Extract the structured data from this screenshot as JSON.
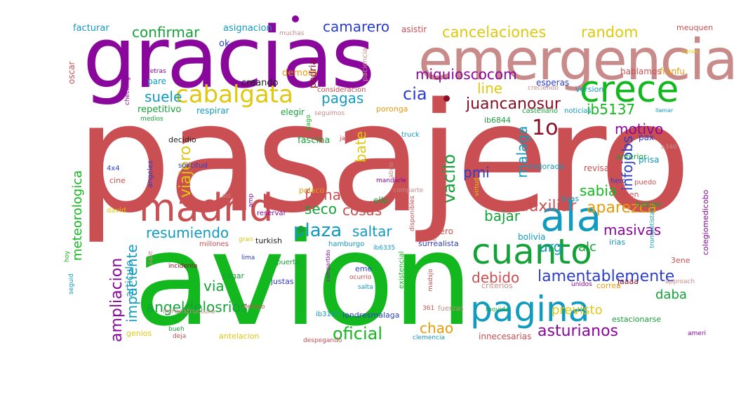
{
  "words": [
    {
      "t": "pasajero",
      "c": "#c94f52"
    },
    {
      "t": "avion",
      "c": "#13b81e"
    },
    {
      "t": "gracias",
      "c": "#8a079c"
    },
    {
      "t": "emergencia",
      "c": "#c98a8a"
    },
    {
      "t": "crece",
      "c": "#13b81e"
    },
    {
      "t": "ala",
      "c": "#119bbf"
    },
    {
      "t": "madrid",
      "c": "#c94f52"
    },
    {
      "t": "cuanto",
      "c": "#15a13a"
    },
    {
      "t": "pagina",
      "c": "#119bbf"
    },
    {
      "t": "cabalgata",
      "c": "#e0c80c"
    },
    {
      "t": "cancelaciones",
      "c": "#e0c80c"
    },
    {
      "t": "random",
      "c": "#e0c80c"
    },
    {
      "t": "confirmar",
      "c": "#15a13a"
    },
    {
      "t": "camarero",
      "c": "#2b3dcc"
    },
    {
      "t": "miquioscocom",
      "c": "#8a079c"
    },
    {
      "t": "juancanosur",
      "c": "#8a0f24"
    },
    {
      "t": "cia",
      "c": "#2b3dcc"
    },
    {
      "t": "line",
      "c": "#e0c80c"
    },
    {
      "t": "pagas",
      "c": "#119bbf"
    },
    {
      "t": "suele",
      "c": "#119bbf"
    },
    {
      "t": "ib5137",
      "c": "#13b81e"
    },
    {
      "t": "motivo",
      "c": "#8a079c"
    },
    {
      "t": "1o",
      "c": "#8a0f24"
    },
    {
      "t": "infojobs",
      "c": "#2b3dcc"
    },
    {
      "t": "vacilo",
      "c": "#15a13a"
    },
    {
      "t": "malaga",
      "c": "#119bbf"
    },
    {
      "t": "bate",
      "c": "#e0c80c"
    },
    {
      "t": "viajero",
      "c": "#e0c80c"
    },
    {
      "t": "pmi",
      "c": "#2b3dcc"
    },
    {
      "t": "frena",
      "c": "#c94f52"
    },
    {
      "t": "aparezca",
      "c": "#e89a0c"
    },
    {
      "t": "sabia",
      "c": "#13b81e"
    },
    {
      "t": "auxiliar",
      "c": "#c94f52"
    },
    {
      "t": "bajar",
      "c": "#15a13a"
    },
    {
      "t": "seco",
      "c": "#15a13a"
    },
    {
      "t": "cosas",
      "c": "#c94f52"
    },
    {
      "t": "resumiendo",
      "c": "#119bbf"
    },
    {
      "t": "plaza",
      "c": "#119bbf"
    },
    {
      "t": "saltar",
      "c": "#119bbf"
    },
    {
      "t": "masivas",
      "c": "#8a079c"
    },
    {
      "t": "urg",
      "c": "#119bbf"
    },
    {
      "t": "alc",
      "c": "#15a13a"
    },
    {
      "t": "lamentablemente",
      "c": "#2b3dcc"
    },
    {
      "t": "debido",
      "c": "#c94f52"
    },
    {
      "t": "ampliacion",
      "c": "#8a079c"
    },
    {
      "t": "impaciente",
      "c": "#119bbf"
    },
    {
      "t": "meteorologica",
      "c": "#13b81e"
    },
    {
      "t": "angeldelosrios",
      "c": "#15a13a"
    },
    {
      "t": "oficial",
      "c": "#13b81e"
    },
    {
      "t": "chao",
      "c": "#e89a0c"
    },
    {
      "t": "asturianos",
      "c": "#8a079c"
    },
    {
      "t": "previsto",
      "c": "#e0c80c"
    },
    {
      "t": "daba",
      "c": "#15a13a"
    },
    {
      "t": "via",
      "c": "#15a13a"
    },
    {
      "t": "articulo",
      "c": "#119bbf"
    },
    {
      "t": "facturar",
      "c": "#119bbf"
    },
    {
      "t": "asignacion",
      "c": "#119bbf"
    },
    {
      "t": "asistir",
      "c": "#c94f52"
    },
    {
      "t": "meuquen",
      "c": "#c94f52"
    },
    {
      "t": "ok",
      "c": "#2b3dcc"
    },
    {
      "t": "muchas",
      "c": "#c98a8a"
    },
    {
      "t": "demora",
      "c": "#e89a0c"
    },
    {
      "t": "creando",
      "c": "#222222"
    },
    {
      "t": "podria",
      "c": "#8a0f24"
    },
    {
      "t": "paciencia",
      "c": "#c98a8a"
    },
    {
      "t": "pare",
      "c": "#119bbf"
    },
    {
      "t": "detras",
      "c": "#8a079c"
    },
    {
      "t": "checking",
      "c": "#8a079c"
    },
    {
      "t": "oscar",
      "c": "#c94f52"
    },
    {
      "t": "version",
      "c": "#119bbf"
    },
    {
      "t": "hablamos",
      "c": "#c94f52"
    },
    {
      "t": "franfu",
      "c": "#e89a0c"
    },
    {
      "t": "esperas",
      "c": "#2b3dcc"
    },
    {
      "t": "creciendo",
      "c": "#c98a8a"
    },
    {
      "t": "consideracion",
      "c": "#c94f52"
    },
    {
      "t": "repetitivo",
      "c": "#15a13a"
    },
    {
      "t": "respirar",
      "c": "#119bbf"
    },
    {
      "t": "elegir",
      "c": "#15a13a"
    },
    {
      "t": "seguimos",
      "c": "#c98a8a"
    },
    {
      "t": "poronga",
      "c": "#e89a0c"
    },
    {
      "t": "castellano",
      "c": "#15a13a"
    },
    {
      "t": "noticias",
      "c": "#119bbf"
    },
    {
      "t": "medios",
      "c": "#15a13a"
    },
    {
      "t": "pago",
      "c": "#13b81e"
    },
    {
      "t": "ib6844",
      "c": "#15a13a"
    },
    {
      "t": "decidio",
      "c": "#222222"
    },
    {
      "t": "fascina",
      "c": "#15a13a"
    },
    {
      "t": "jajaja",
      "c": "#c94f52"
    },
    {
      "t": "truck",
      "c": "#119bbf"
    },
    {
      "t": "pax",
      "c": "#2b3dcc"
    },
    {
      "t": "a346",
      "c": "#c98a8a"
    },
    {
      "t": "anterior",
      "c": "#15a13a"
    },
    {
      "t": "prisa",
      "c": "#119bbf"
    },
    {
      "t": "revisar",
      "c": "#c94f52"
    },
    {
      "t": "mejorada",
      "c": "#119bbf"
    },
    {
      "t": "4x4",
      "c": "#2b3dcc"
    },
    {
      "t": "angeles",
      "c": "#2b3dcc"
    },
    {
      "t": "solicitud",
      "c": "#2b3dcc"
    },
    {
      "t": "mandarle",
      "c": "#8a079c"
    },
    {
      "t": "abrio",
      "c": "#c98a8a"
    },
    {
      "t": "cine",
      "c": "#c94f52"
    },
    {
      "t": "polaco",
      "c": "#e89a0c"
    },
    {
      "t": "comparte",
      "c": "#c98a8a"
    },
    {
      "t": "hero",
      "c": "#2b3dcc"
    },
    {
      "t": "puedo",
      "c": "#c94f52"
    },
    {
      "t": "deben",
      "c": "#c94f52"
    },
    {
      "t": "hablan",
      "c": "#15a13a"
    },
    {
      "t": "colegiomedicobo",
      "c": "#8a079c"
    },
    {
      "t": "david",
      "c": "#e0c80c"
    },
    {
      "t": "asi",
      "c": "#c98a8a"
    },
    {
      "t": "amp",
      "c": "#8a079c"
    },
    {
      "t": "reservar",
      "c": "#8a079c"
    },
    {
      "t": "disponibles",
      "c": "#c94f52"
    },
    {
      "t": "virtud",
      "c": "#e0c80c"
    },
    {
      "t": "bsas",
      "c": "#119bbf"
    },
    {
      "t": "ello",
      "c": "#15a13a"
    },
    {
      "t": "quiero",
      "c": "#c94f52"
    },
    {
      "t": "surrealista",
      "c": "#2b3dcc"
    },
    {
      "t": "bolivia",
      "c": "#119bbf"
    },
    {
      "t": "irias",
      "c": "#119bbf"
    },
    {
      "t": "trompetistas",
      "c": "#119bbf"
    },
    {
      "t": "hoy",
      "c": "#13b81e"
    },
    {
      "t": "millones",
      "c": "#c94f52"
    },
    {
      "t": "gran",
      "c": "#e0c80c"
    },
    {
      "t": "turkish",
      "c": "#222222"
    },
    {
      "t": "hamburgo",
      "c": "#119bbf"
    },
    {
      "t": "ib6335",
      "c": "#119bbf"
    },
    {
      "t": "arte",
      "c": "#c94f52"
    },
    {
      "t": "sale",
      "c": "#c98a8a"
    },
    {
      "t": "incidente",
      "c": "#8a0f24"
    },
    {
      "t": "lima",
      "c": "#2b3dcc"
    },
    {
      "t": "puerta",
      "c": "#15a13a"
    },
    {
      "t": "compartido",
      "c": "#8a079c"
    },
    {
      "t": "eme",
      "c": "#2b3dcc"
    },
    {
      "t": "ocurrio",
      "c": "#c94f52"
    },
    {
      "t": "existencial",
      "c": "#13b81e"
    },
    {
      "t": "jaaaa",
      "c": "#8a0f24"
    },
    {
      "t": "3ene",
      "c": "#c94f52"
    },
    {
      "t": "pagar",
      "c": "#15a13a"
    },
    {
      "t": "justas",
      "c": "#2b3dcc"
    },
    {
      "t": "salta",
      "c": "#119bbf"
    },
    {
      "t": "madsjo",
      "c": "#c94f52"
    },
    {
      "t": "criterios",
      "c": "#c98a8a"
    },
    {
      "t": "unidos",
      "c": "#8a079c"
    },
    {
      "t": "correa",
      "c": "#e89a0c"
    },
    {
      "t": "approach",
      "c": "#c98a8a"
    },
    {
      "t": "seguid",
      "c": "#119bbf"
    },
    {
      "t": "infraestructura",
      "c": "#c98a8a"
    },
    {
      "t": "tiempo",
      "c": "#c94f52"
    },
    {
      "t": "ib3167",
      "c": "#119bbf"
    },
    {
      "t": "londresmalaga",
      "c": "#2b3dcc"
    },
    {
      "t": "361",
      "c": "#c94f52"
    },
    {
      "t": "fuerzas",
      "c": "#c98a8a"
    },
    {
      "t": "movida",
      "c": "#15a13a"
    },
    {
      "t": "estacionarse",
      "c": "#15a13a"
    },
    {
      "t": "genios",
      "c": "#e0c80c"
    },
    {
      "t": "bueh",
      "c": "#15a13a"
    },
    {
      "t": "deja",
      "c": "#c94f52"
    },
    {
      "t": "antelacion",
      "c": "#e0c80c"
    },
    {
      "t": "despegando",
      "c": "#c94f52"
    },
    {
      "t": "clemencia",
      "c": "#119bbf"
    },
    {
      "t": "innecesarias",
      "c": "#c94f52"
    },
    {
      "t": "ameri",
      "c": "#8a079c"
    },
    {
      "t": "llamar",
      "c": "#119bbf"
    },
    {
      "t": "sense",
      "c": "#e0c80c"
    }
  ]
}
